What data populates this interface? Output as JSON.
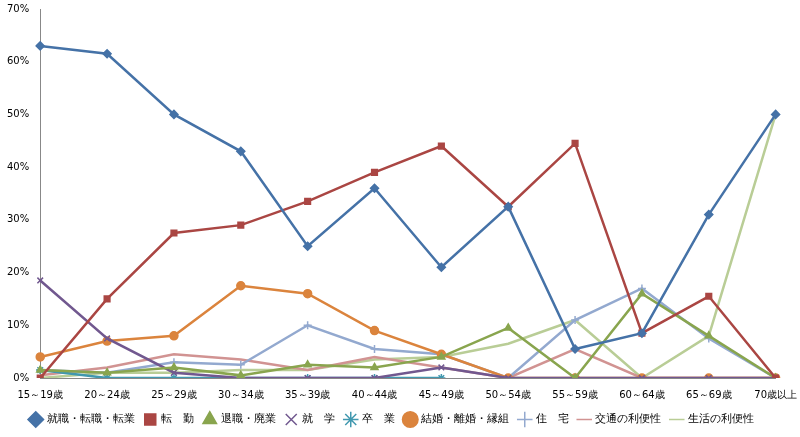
{
  "chart_data": {
    "type": "line",
    "categories": [
      "15～19歳",
      "20～24歳",
      "25～29歳",
      "30～34歳",
      "35～39歳",
      "40～44歳",
      "45～49歳",
      "50～54歳",
      "55～59歳",
      "60～64歳",
      "65～69歳",
      "70歳以上"
    ],
    "series": [
      {
        "name": "就職・転職・転業",
        "color": "#4572A7",
        "marker": "diamond",
        "values": [
          63,
          61.5,
          50,
          43,
          25,
          36,
          21,
          32.5,
          5.5,
          8.5,
          31,
          50
        ]
      },
      {
        "name": "転　勤",
        "color": "#AA4643",
        "marker": "square",
        "values": [
          0,
          15,
          27.5,
          29,
          33.5,
          39,
          44,
          32.5,
          44.5,
          8.5,
          15.5,
          0
        ]
      },
      {
        "name": "退職・廃業",
        "color": "#89A54E",
        "marker": "triangle",
        "values": [
          1.5,
          1,
          2,
          0.5,
          2.5,
          2,
          4,
          9.5,
          0,
          16,
          8,
          0
        ]
      },
      {
        "name": "就　学",
        "color": "#71588F",
        "marker": "x",
        "values": [
          18.5,
          7.5,
          1,
          0,
          0,
          0,
          2,
          0,
          0,
          0,
          0,
          0
        ]
      },
      {
        "name": "卒　業",
        "color": "#4198AF",
        "marker": "star",
        "values": [
          1.5,
          0,
          0,
          0,
          0,
          0,
          0,
          null,
          null,
          null,
          null,
          null
        ]
      },
      {
        "name": "結婚・離婚・縁組",
        "color": "#DB843D",
        "marker": "circle",
        "values": [
          4,
          7,
          8,
          17.5,
          16,
          9,
          4.5,
          0,
          0,
          0,
          0,
          0
        ]
      },
      {
        "name": "住　宅",
        "color": "#93A9CF",
        "marker": "plus",
        "values": [
          1.5,
          1,
          3,
          2.5,
          10,
          5.5,
          4.5,
          0,
          11,
          17,
          7.5,
          0
        ]
      },
      {
        "name": "交通の利便性",
        "color": "#D19392",
        "marker": "none",
        "values": [
          0.5,
          2,
          4.5,
          3.5,
          1.5,
          4,
          2,
          0,
          5.5,
          0,
          0,
          0
        ]
      },
      {
        "name": "生活の利便性",
        "color": "#B9CD96",
        "marker": "none",
        "values": [
          0,
          1,
          1,
          1.5,
          1.5,
          3.5,
          4,
          6.5,
          11,
          0,
          8,
          50
        ]
      }
    ],
    "ylim": [
      0,
      70
    ],
    "yticks": [
      {
        "value": 0,
        "label": "0%"
      },
      {
        "value": 10,
        "label": "10%"
      },
      {
        "value": 20,
        "label": "20%"
      },
      {
        "value": 30,
        "label": "30%"
      },
      {
        "value": 40,
        "label": "40%"
      },
      {
        "value": 50,
        "label": "50%"
      },
      {
        "value": 60,
        "label": "60%"
      },
      {
        "value": 70,
        "label": "70%"
      }
    ],
    "grid": false,
    "legend": "bottom"
  }
}
